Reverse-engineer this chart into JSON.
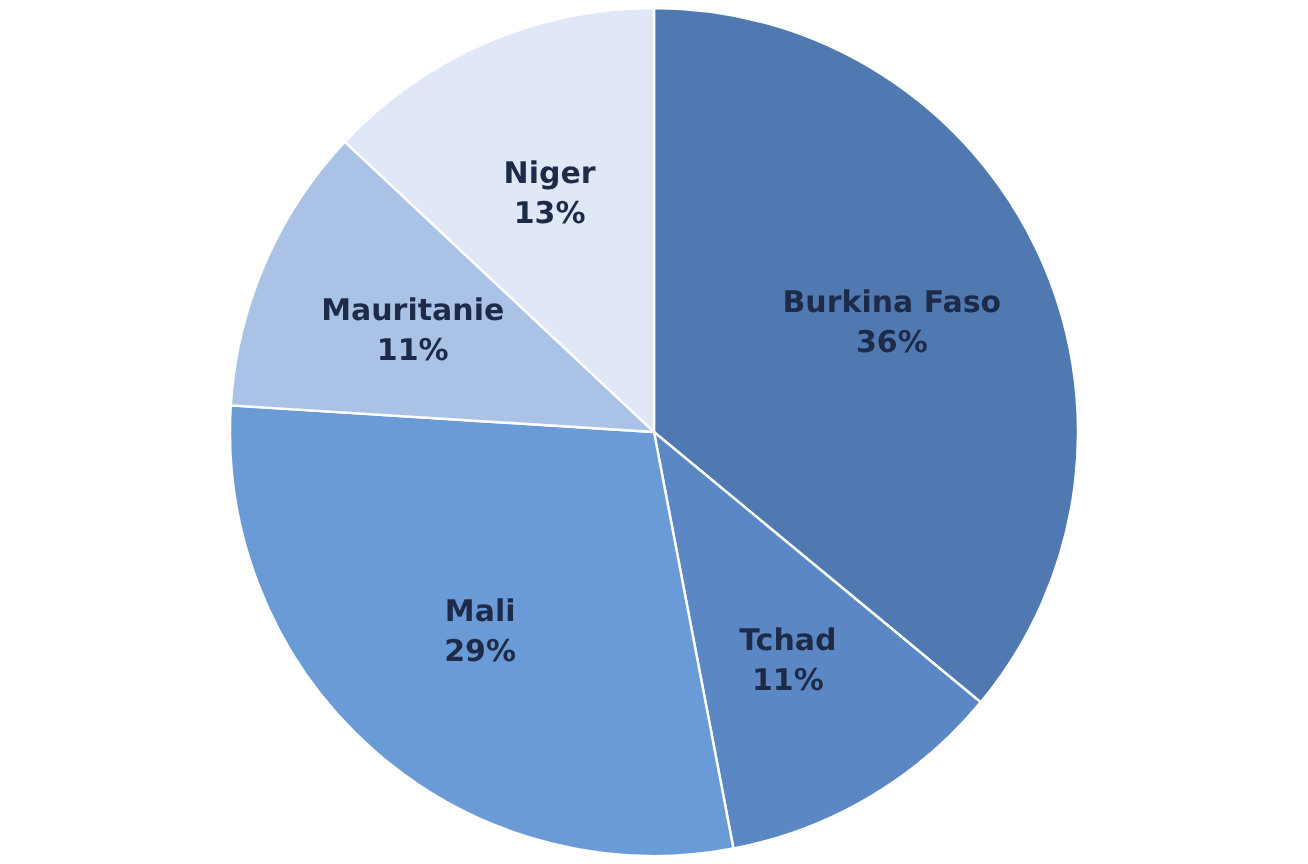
{
  "chart_data": {
    "type": "pie",
    "categories": [
      "Burkina Faso",
      "Tchad",
      "Mali",
      "Mauritanie",
      "Niger"
    ],
    "values": [
      36,
      11,
      29,
      11,
      13
    ],
    "colors": [
      "#4f79b0",
      "#5b88c4",
      "#6b9bd6",
      "#abc2e7",
      "#e0e7f6"
    ],
    "value_labels": [
      "36%",
      "11%",
      "29%",
      "11%",
      "13%"
    ],
    "legend": false
  }
}
